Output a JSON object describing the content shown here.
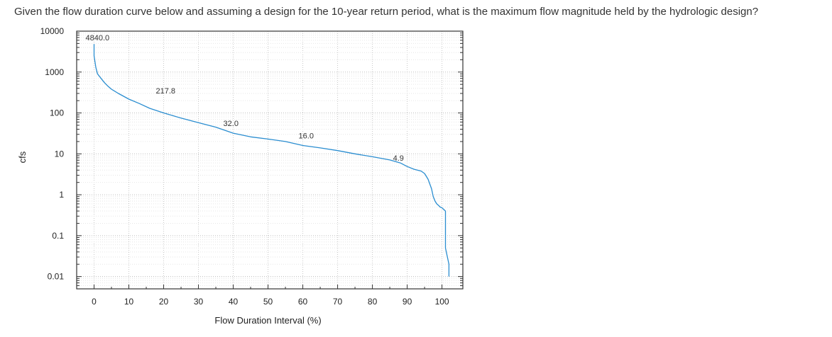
{
  "question": "Given the flow duration curve below and assuming a design for the 10-year return period, what is the maximum flow magnitude held by the hydrologic design?",
  "colors": {
    "curve": "#2a8dd0",
    "grid": "#c8c8c8",
    "frame": "#333333",
    "text": "#333333"
  },
  "chart_data": {
    "type": "line",
    "title": "",
    "xlabel": "Flow Duration Interval (%)",
    "ylabel": "cfs",
    "xlim": [
      -5,
      106
    ],
    "ylim": [
      0.005,
      10000
    ],
    "yscale": "log",
    "grid": true,
    "x_ticks": [
      0,
      10,
      20,
      30,
      40,
      50,
      60,
      70,
      80,
      90,
      100
    ],
    "x_tick_labels": [
      "0",
      "10",
      "20",
      "30",
      "40",
      "50",
      "60",
      "70",
      "80",
      "90",
      "100"
    ],
    "y_ticks": [
      10000,
      1000,
      100,
      10,
      1,
      0.1,
      0.01
    ],
    "y_tick_labels": [
      "10000",
      "1000",
      "100",
      "10",
      "1",
      "0.1",
      "0.01"
    ],
    "series": [
      {
        "x": [
          0,
          0,
          0.5,
          1,
          2,
          3,
          4,
          5,
          7,
          10,
          13,
          16,
          20,
          25,
          30,
          35,
          40,
          45,
          50,
          55,
          60,
          65,
          70,
          75,
          80,
          85,
          88,
          90,
          92,
          94,
          95,
          96,
          97,
          97.5,
          98,
          98.5,
          99,
          99.5,
          100,
          101,
          101,
          102,
          102
        ],
        "y": [
          4840,
          2500,
          1300,
          900,
          700,
          550,
          450,
          380,
          300,
          217.8,
          170,
          130,
          100,
          75,
          58,
          45,
          32,
          26,
          23,
          20,
          16,
          14,
          12,
          10,
          8.5,
          7.1,
          6,
          4.9,
          4.2,
          3.8,
          3.3,
          2.4,
          1.4,
          0.9,
          0.7,
          0.6,
          0.55,
          0.5,
          0.48,
          0.4,
          0.05,
          0.02,
          0.01
        ]
      }
    ],
    "annotations": [
      {
        "text": "4840.0",
        "x": 0,
        "y": 4840
      },
      {
        "text": "217.8",
        "x": 10,
        "y": 217.8
      },
      {
        "text": "32.0",
        "x": 40,
        "y": 32.0
      },
      {
        "text": "16.0",
        "x": 60,
        "y": 16.0
      },
      {
        "text": "4.9",
        "x": 90,
        "y": 4.9
      }
    ]
  }
}
